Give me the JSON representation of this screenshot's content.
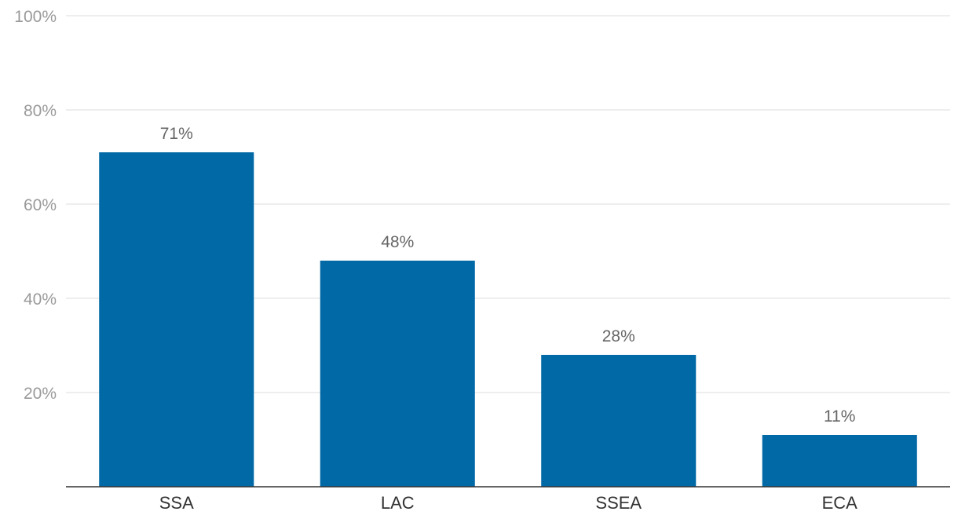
{
  "chart_data": {
    "type": "bar",
    "categories": [
      "SSA",
      "LAC",
      "SSEA",
      "ECA"
    ],
    "values": [
      71,
      48,
      28,
      11
    ],
    "value_labels": [
      "71%",
      "48%",
      "28%",
      "11%"
    ],
    "title": "",
    "xlabel": "",
    "ylabel": "",
    "ylim": [
      0,
      100
    ],
    "y_ticks": [
      20,
      40,
      60,
      80,
      100
    ],
    "y_tick_labels": [
      "20%",
      "40%",
      "60%",
      "80%",
      "100%"
    ],
    "grid": true,
    "legend": "none",
    "bar_color": "#0069a6"
  }
}
